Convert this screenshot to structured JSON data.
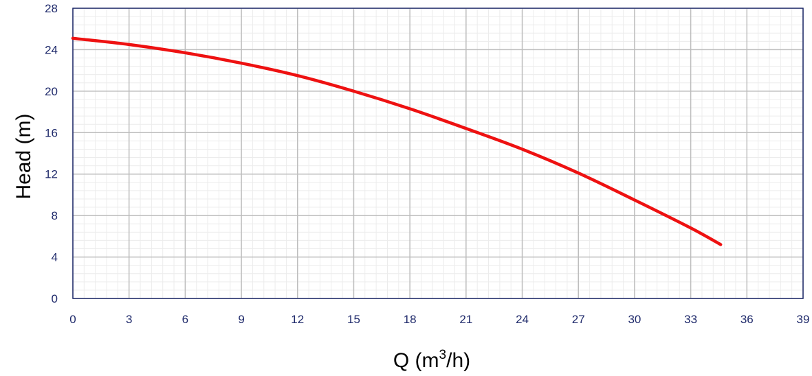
{
  "chart_data": {
    "type": "line",
    "title": "",
    "xlabel": "Q (m",
    "xlabel_sup": "3",
    "xlabel_suffix": "/h)",
    "ylabel": "Head (m)",
    "xlim": [
      0,
      39
    ],
    "ylim": [
      0,
      28
    ],
    "x_ticks": [
      "0",
      "3",
      "6",
      "9",
      "12",
      "15",
      "18",
      "21",
      "24",
      "27",
      "30",
      "33",
      "36",
      "39"
    ],
    "y_ticks": [
      "0",
      "4",
      "8",
      "12",
      "16",
      "20",
      "24",
      "28"
    ],
    "grid": true,
    "minor_grid": true,
    "series": [
      {
        "color": "#ee1111",
        "x": [
          0,
          3,
          6,
          9,
          12,
          15,
          18,
          21,
          24,
          27,
          30,
          33,
          34.6
        ],
        "y": [
          25.1,
          24.5,
          23.7,
          22.7,
          21.5,
          20.0,
          18.3,
          16.4,
          14.4,
          12.1,
          9.5,
          6.8,
          5.2
        ]
      }
    ]
  }
}
